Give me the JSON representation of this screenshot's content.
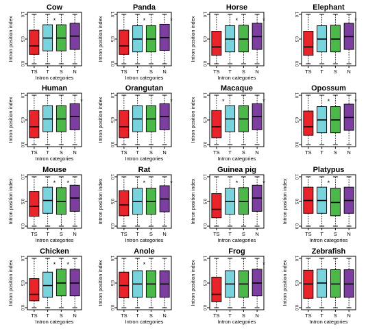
{
  "figure": {
    "ylabel": "Intron position index",
    "xlabel": "Intron categories",
    "ytick_labels": [
      "0.0",
      "0.5",
      "1.0"
    ],
    "significance_mark": "*",
    "colors": {
      "TS": "#e8242a",
      "T": "#78d3dc",
      "S": "#4db84a",
      "N": "#7c3fa0"
    }
  },
  "chart_data": [
    {
      "type": "boxplot",
      "title": "Cow",
      "ylim": [
        0,
        1
      ],
      "xlabel": "Intron categories",
      "ylabel": "Intron position index",
      "categories": [
        "TS",
        "T",
        "S",
        "N"
      ],
      "boxes": [
        {
          "name": "TS",
          "q1": 0.19,
          "median": 0.36,
          "q3": 0.68,
          "whisker_low": 0.0,
          "whisker_high": 1.0,
          "sig": false
        },
        {
          "name": "T",
          "q1": 0.26,
          "median": 0.52,
          "q3": 0.79,
          "whisker_low": 0.0,
          "whisker_high": 1.0,
          "sig": true
        },
        {
          "name": "S",
          "q1": 0.26,
          "median": 0.52,
          "q3": 0.79,
          "whisker_low": 0.0,
          "whisker_high": 1.0,
          "sig": false
        },
        {
          "name": "N",
          "q1": 0.29,
          "median": 0.56,
          "q3": 0.82,
          "whisker_low": 0.0,
          "whisker_high": 1.0,
          "sig": false
        }
      ]
    },
    {
      "type": "boxplot",
      "title": "Panda",
      "ylim": [
        0,
        1
      ],
      "xlabel": "Intron categories",
      "ylabel": "Intron position index",
      "categories": [
        "TS",
        "T",
        "S",
        "N"
      ],
      "boxes": [
        {
          "name": "TS",
          "q1": 0.19,
          "median": 0.36,
          "q3": 0.68,
          "whisker_low": 0.0,
          "whisker_high": 1.0,
          "sig": false
        },
        {
          "name": "T",
          "q1": 0.24,
          "median": 0.5,
          "q3": 0.77,
          "whisker_low": 0.0,
          "whisker_high": 1.0,
          "sig": true
        },
        {
          "name": "S",
          "q1": 0.24,
          "median": 0.5,
          "q3": 0.77,
          "whisker_low": 0.0,
          "whisker_high": 1.0,
          "sig": false
        },
        {
          "name": "N",
          "q1": 0.27,
          "median": 0.53,
          "q3": 0.8,
          "whisker_low": 0.0,
          "whisker_high": 1.0,
          "sig": true
        }
      ]
    },
    {
      "type": "boxplot",
      "title": "Horse",
      "ylim": [
        0,
        1
      ],
      "xlabel": "Intron categories",
      "ylabel": "Intron position index",
      "categories": [
        "TS",
        "T",
        "S",
        "N"
      ],
      "boxes": [
        {
          "name": "TS",
          "q1": 0.17,
          "median": 0.34,
          "q3": 0.66,
          "whisker_low": 0.0,
          "whisker_high": 1.0,
          "sig": false
        },
        {
          "name": "T",
          "q1": 0.24,
          "median": 0.5,
          "q3": 0.77,
          "whisker_low": 0.0,
          "whisker_high": 1.0,
          "sig": true
        },
        {
          "name": "S",
          "q1": 0.24,
          "median": 0.5,
          "q3": 0.78,
          "whisker_low": 0.0,
          "whisker_high": 1.0,
          "sig": false
        },
        {
          "name": "N",
          "q1": 0.29,
          "median": 0.55,
          "q3": 0.82,
          "whisker_low": 0.0,
          "whisker_high": 1.0,
          "sig": true
        }
      ]
    },
    {
      "type": "boxplot",
      "title": "Elephant",
      "ylim": [
        0,
        1
      ],
      "xlabel": "",
      "ylabel": "",
      "categories": [
        "TS",
        "T",
        "S",
        "N"
      ],
      "boxes": [
        {
          "name": "TS",
          "q1": 0.17,
          "median": 0.34,
          "q3": 0.66,
          "whisker_low": 0.0,
          "whisker_high": 1.0,
          "sig": false
        },
        {
          "name": "T",
          "q1": 0.24,
          "median": 0.5,
          "q3": 0.77,
          "whisker_low": 0.0,
          "whisker_high": 1.0,
          "sig": false
        },
        {
          "name": "S",
          "q1": 0.24,
          "median": 0.5,
          "q3": 0.78,
          "whisker_low": 0.0,
          "whisker_high": 1.0,
          "sig": false
        },
        {
          "name": "N",
          "q1": 0.29,
          "median": 0.55,
          "q3": 0.82,
          "whisker_low": 0.0,
          "whisker_high": 1.0,
          "sig": true
        }
      ]
    },
    {
      "type": "boxplot",
      "title": "Human",
      "ylim": [
        0,
        1
      ],
      "xlabel": "Intron categories",
      "ylabel": "Intron position index",
      "categories": [
        "TS",
        "T",
        "S",
        "N"
      ],
      "boxes": [
        {
          "name": "TS",
          "q1": 0.14,
          "median": 0.36,
          "q3": 0.69,
          "whisker_low": 0.0,
          "whisker_high": 1.0,
          "sig": false
        },
        {
          "name": "T",
          "q1": 0.26,
          "median": 0.52,
          "q3": 0.79,
          "whisker_low": 0.0,
          "whisker_high": 1.0,
          "sig": false
        },
        {
          "name": "S",
          "q1": 0.26,
          "median": 0.52,
          "q3": 0.79,
          "whisker_low": 0.0,
          "whisker_high": 1.0,
          "sig": false
        },
        {
          "name": "N",
          "q1": 0.3,
          "median": 0.57,
          "q3": 0.83,
          "whisker_low": 0.0,
          "whisker_high": 1.0,
          "sig": true
        }
      ]
    },
    {
      "type": "boxplot",
      "title": "Orangutan",
      "ylim": [
        0,
        1
      ],
      "xlabel": "Intron categories",
      "ylabel": "Intron position index",
      "categories": [
        "TS",
        "T",
        "S",
        "N"
      ],
      "boxes": [
        {
          "name": "TS",
          "q1": 0.14,
          "median": 0.36,
          "q3": 0.69,
          "whisker_low": 0.0,
          "whisker_high": 1.0,
          "sig": false
        },
        {
          "name": "T",
          "q1": 0.26,
          "median": 0.52,
          "q3": 0.79,
          "whisker_low": 0.0,
          "whisker_high": 1.0,
          "sig": false
        },
        {
          "name": "S",
          "q1": 0.26,
          "median": 0.52,
          "q3": 0.79,
          "whisker_low": 0.0,
          "whisker_high": 1.0,
          "sig": false
        },
        {
          "name": "N",
          "q1": 0.3,
          "median": 0.57,
          "q3": 0.83,
          "whisker_low": 0.0,
          "whisker_high": 1.0,
          "sig": true
        }
      ]
    },
    {
      "type": "boxplot",
      "title": "Macaque",
      "ylim": [
        0,
        1
      ],
      "xlabel": "Intron categories",
      "ylabel": "Intron position index",
      "categories": [
        "TS",
        "T",
        "S",
        "N"
      ],
      "boxes": [
        {
          "name": "TS",
          "q1": 0.14,
          "median": 0.36,
          "q3": 0.69,
          "whisker_low": 0.0,
          "whisker_high": 1.0,
          "sig": true
        },
        {
          "name": "T",
          "q1": 0.26,
          "median": 0.52,
          "q3": 0.79,
          "whisker_low": 0.0,
          "whisker_high": 1.0,
          "sig": false
        },
        {
          "name": "S",
          "q1": 0.26,
          "median": 0.52,
          "q3": 0.79,
          "whisker_low": 0.0,
          "whisker_high": 1.0,
          "sig": false
        },
        {
          "name": "N",
          "q1": 0.3,
          "median": 0.57,
          "q3": 0.83,
          "whisker_low": 0.0,
          "whisker_high": 1.0,
          "sig": true
        }
      ]
    },
    {
      "type": "boxplot",
      "title": "Opossum",
      "ylim": [
        0,
        1
      ],
      "xlabel": "",
      "ylabel": "",
      "categories": [
        "TS",
        "T",
        "S",
        "N"
      ],
      "boxes": [
        {
          "name": "TS",
          "q1": 0.19,
          "median": 0.36,
          "q3": 0.68,
          "whisker_low": 0.0,
          "whisker_high": 1.0,
          "sig": false
        },
        {
          "name": "T",
          "q1": 0.24,
          "median": 0.5,
          "q3": 0.77,
          "whisker_low": 0.0,
          "whisker_high": 1.0,
          "sig": true
        },
        {
          "name": "S",
          "q1": 0.24,
          "median": 0.5,
          "q3": 0.77,
          "whisker_low": 0.0,
          "whisker_high": 1.0,
          "sig": false
        },
        {
          "name": "N",
          "q1": 0.29,
          "median": 0.55,
          "q3": 0.82,
          "whisker_low": 0.0,
          "whisker_high": 1.0,
          "sig": true
        }
      ]
    },
    {
      "type": "boxplot",
      "title": "Mouse",
      "ylim": [
        0,
        1
      ],
      "xlabel": "Intron categories",
      "ylabel": "Intron position index",
      "categories": [
        "TS",
        "T",
        "S",
        "N"
      ],
      "boxes": [
        {
          "name": "TS",
          "q1": 0.2,
          "median": 0.4,
          "q3": 0.7,
          "whisker_low": 0.0,
          "whisker_high": 1.0,
          "sig": false
        },
        {
          "name": "T",
          "q1": 0.26,
          "median": 0.52,
          "q3": 0.79,
          "whisker_low": 0.0,
          "whisker_high": 1.0,
          "sig": true
        },
        {
          "name": "S",
          "q1": 0.24,
          "median": 0.5,
          "q3": 0.78,
          "whisker_low": 0.0,
          "whisker_high": 1.0,
          "sig": true
        },
        {
          "name": "N",
          "q1": 0.3,
          "median": 0.57,
          "q3": 0.83,
          "whisker_low": 0.0,
          "whisker_high": 1.0,
          "sig": false
        }
      ]
    },
    {
      "type": "boxplot",
      "title": "Rat",
      "ylim": [
        0,
        1
      ],
      "xlabel": "Intron categories",
      "ylabel": "Intron position index",
      "categories": [
        "TS",
        "T",
        "S",
        "N"
      ],
      "boxes": [
        {
          "name": "TS",
          "q1": 0.21,
          "median": 0.43,
          "q3": 0.72,
          "whisker_low": 0.0,
          "whisker_high": 1.0,
          "sig": false
        },
        {
          "name": "T",
          "q1": 0.24,
          "median": 0.5,
          "q3": 0.77,
          "whisker_low": 0.0,
          "whisker_high": 1.0,
          "sig": true
        },
        {
          "name": "S",
          "q1": 0.24,
          "median": 0.5,
          "q3": 0.77,
          "whisker_low": 0.0,
          "whisker_high": 1.0,
          "sig": false
        },
        {
          "name": "N",
          "q1": 0.29,
          "median": 0.55,
          "q3": 0.82,
          "whisker_low": 0.0,
          "whisker_high": 1.0,
          "sig": true
        }
      ]
    },
    {
      "type": "boxplot",
      "title": "Guinea pig",
      "ylim": [
        0,
        1
      ],
      "xlabel": "Intron categories",
      "ylabel": "Intron position index",
      "categories": [
        "TS",
        "T",
        "S",
        "N"
      ],
      "boxes": [
        {
          "name": "TS",
          "q1": 0.17,
          "median": 0.34,
          "q3": 0.66,
          "whisker_low": 0.0,
          "whisker_high": 1.0,
          "sig": false
        },
        {
          "name": "T",
          "q1": 0.24,
          "median": 0.5,
          "q3": 0.77,
          "whisker_low": 0.0,
          "whisker_high": 1.0,
          "sig": true
        },
        {
          "name": "S",
          "q1": 0.24,
          "median": 0.5,
          "q3": 0.78,
          "whisker_low": 0.0,
          "whisker_high": 1.0,
          "sig": false
        },
        {
          "name": "N",
          "q1": 0.3,
          "median": 0.57,
          "q3": 0.83,
          "whisker_low": 0.0,
          "whisker_high": 1.0,
          "sig": true
        }
      ]
    },
    {
      "type": "boxplot",
      "title": "Platypus",
      "ylim": [
        0,
        1
      ],
      "xlabel": "Intron categories",
      "ylabel": "Intron position index",
      "categories": [
        "TS",
        "T",
        "S",
        "N"
      ],
      "boxes": [
        {
          "name": "TS",
          "q1": 0.26,
          "median": 0.52,
          "q3": 0.79,
          "whisker_low": 0.0,
          "whisker_high": 1.0,
          "sig": false
        },
        {
          "name": "T",
          "q1": 0.26,
          "median": 0.52,
          "q3": 0.79,
          "whisker_low": 0.0,
          "whisker_high": 1.0,
          "sig": true
        },
        {
          "name": "S",
          "q1": 0.21,
          "median": 0.48,
          "q3": 0.77,
          "whisker_low": 0.0,
          "whisker_high": 1.0,
          "sig": false
        },
        {
          "name": "N",
          "q1": 0.26,
          "median": 0.52,
          "q3": 0.79,
          "whisker_low": 0.0,
          "whisker_high": 1.0,
          "sig": false
        }
      ]
    },
    {
      "type": "boxplot",
      "title": "Chicken",
      "ylim": [
        0,
        1
      ],
      "xlabel": "Intron categories",
      "ylabel": "Intron position index",
      "categories": [
        "TS",
        "T",
        "S",
        "N"
      ],
      "boxes": [
        {
          "name": "TS",
          "q1": 0.14,
          "median": 0.27,
          "q3": 0.59,
          "whisker_low": 0.0,
          "whisker_high": 1.0,
          "sig": false
        },
        {
          "name": "T",
          "q1": 0.21,
          "median": 0.45,
          "q3": 0.72,
          "whisker_low": 0.0,
          "whisker_high": 1.0,
          "sig": true
        },
        {
          "name": "S",
          "q1": 0.24,
          "median": 0.5,
          "q3": 0.78,
          "whisker_low": 0.0,
          "whisker_high": 1.0,
          "sig": true
        },
        {
          "name": "N",
          "q1": 0.24,
          "median": 0.5,
          "q3": 0.78,
          "whisker_low": 0.0,
          "whisker_high": 1.0,
          "sig": false
        }
      ]
    },
    {
      "type": "boxplot",
      "title": "Anole",
      "ylim": [
        0,
        1
      ],
      "xlabel": "Intron categories",
      "ylabel": "Intron position index",
      "categories": [
        "TS",
        "T",
        "S",
        "N"
      ],
      "boxes": [
        {
          "name": "TS",
          "q1": 0.2,
          "median": 0.45,
          "q3": 0.72,
          "whisker_low": 0.0,
          "whisker_high": 1.0,
          "sig": false
        },
        {
          "name": "T",
          "q1": 0.21,
          "median": 0.48,
          "q3": 0.75,
          "whisker_low": 0.0,
          "whisker_high": 1.0,
          "sig": true
        },
        {
          "name": "S",
          "q1": 0.21,
          "median": 0.48,
          "q3": 0.75,
          "whisker_low": 0.0,
          "whisker_high": 1.0,
          "sig": false
        },
        {
          "name": "N",
          "q1": 0.21,
          "median": 0.48,
          "q3": 0.75,
          "whisker_low": 0.0,
          "whisker_high": 1.0,
          "sig": false
        }
      ]
    },
    {
      "type": "boxplot",
      "title": "Frog",
      "ylim": [
        0,
        1
      ],
      "xlabel": "Intron categories",
      "ylabel": "Intron position index",
      "categories": [
        "TS",
        "T",
        "S",
        "N"
      ],
      "boxes": [
        {
          "name": "TS",
          "q1": 0.12,
          "median": 0.27,
          "q3": 0.62,
          "whisker_low": 0.0,
          "whisker_high": 1.0,
          "sig": false
        },
        {
          "name": "T",
          "q1": 0.21,
          "median": 0.48,
          "q3": 0.75,
          "whisker_low": 0.0,
          "whisker_high": 1.0,
          "sig": false
        },
        {
          "name": "S",
          "q1": 0.21,
          "median": 0.48,
          "q3": 0.75,
          "whisker_low": 0.0,
          "whisker_high": 1.0,
          "sig": false
        },
        {
          "name": "N",
          "q1": 0.24,
          "median": 0.5,
          "q3": 0.78,
          "whisker_low": 0.0,
          "whisker_high": 1.0,
          "sig": true
        }
      ]
    },
    {
      "type": "boxplot",
      "title": "Zebrafish",
      "ylim": [
        0,
        1
      ],
      "xlabel": "Intron categories",
      "ylabel": "Intron position index",
      "categories": [
        "TS",
        "T",
        "S",
        "N"
      ],
      "boxes": [
        {
          "name": "TS",
          "q1": 0.19,
          "median": 0.48,
          "q3": 0.76,
          "whisker_low": 0.0,
          "whisker_high": 1.0,
          "sig": false
        },
        {
          "name": "T",
          "q1": 0.21,
          "median": 0.5,
          "q3": 0.78,
          "whisker_low": 0.0,
          "whisker_high": 1.0,
          "sig": false
        },
        {
          "name": "S",
          "q1": 0.21,
          "median": 0.48,
          "q3": 0.77,
          "whisker_low": 0.0,
          "whisker_high": 1.0,
          "sig": false
        },
        {
          "name": "N",
          "q1": 0.21,
          "median": 0.48,
          "q3": 0.77,
          "whisker_low": 0.0,
          "whisker_high": 1.0,
          "sig": false
        }
      ]
    }
  ]
}
